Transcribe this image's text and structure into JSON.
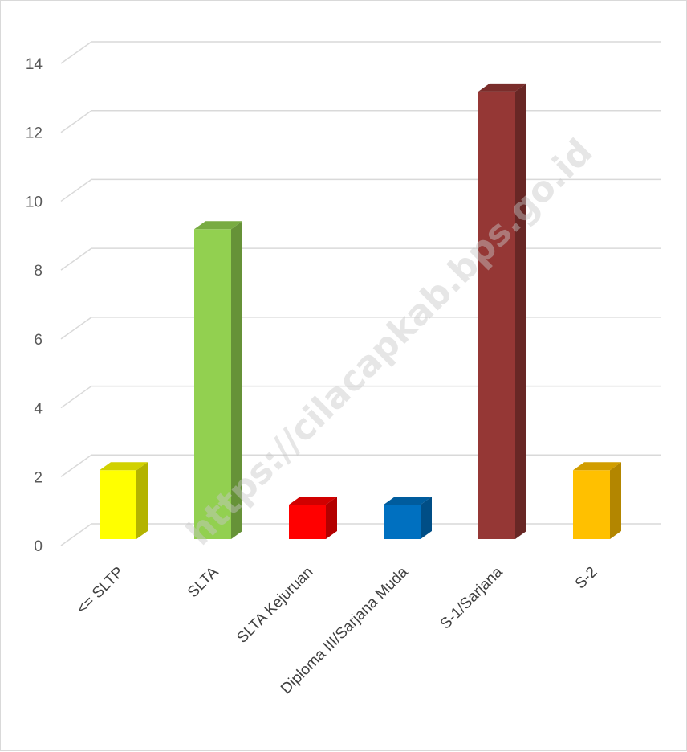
{
  "chart_data": {
    "type": "bar",
    "categories": [
      "<= SLTP",
      "SLTA",
      "SLTA Kejuruan",
      "Diploma III/Sarjana Muda",
      "S-1/Sarjana",
      "S-2"
    ],
    "values": [
      2,
      9,
      1,
      1,
      13,
      2
    ],
    "colors": [
      "#ffff00",
      "#92d050",
      "#ff0000",
      "#0070c0",
      "#953735",
      "#ffc000"
    ],
    "ylim": [
      0,
      14
    ],
    "yticks": [
      0,
      2,
      4,
      6,
      8,
      10,
      12,
      14
    ],
    "grid": true,
    "legend": "none",
    "style": "3d-column"
  },
  "watermark": "https://cilacapkab.bps.go.id"
}
